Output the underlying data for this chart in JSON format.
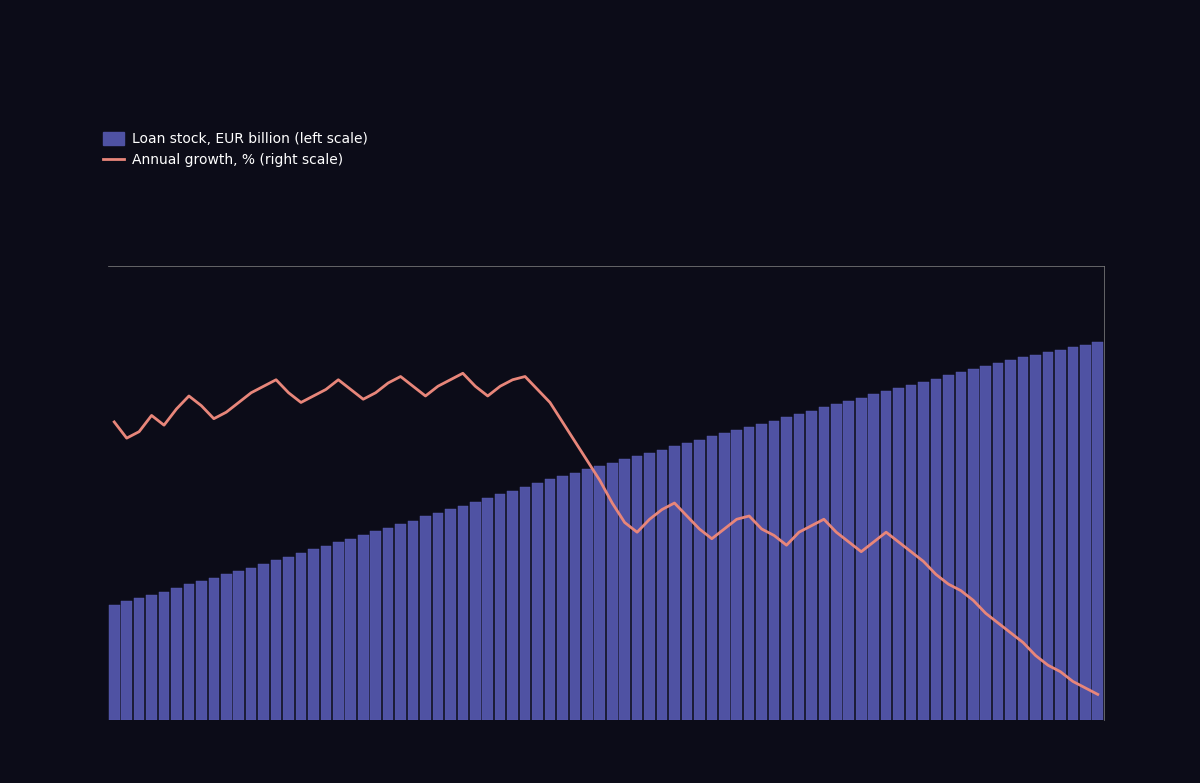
{
  "background_color": "#0c0c18",
  "bar_color": "#4f52a3",
  "line_color": "#e8867a",
  "bar_edge_color": "#5c5eb5",
  "legend_bar_label": "Loan stock, EUR billion (left scale)",
  "legend_line_label": "Annual growth, % (right scale)",
  "n_points": 80,
  "bar_values": [
    14.0,
    14.4,
    14.8,
    15.2,
    15.6,
    16.0,
    16.5,
    16.9,
    17.3,
    17.7,
    18.1,
    18.5,
    18.9,
    19.4,
    19.8,
    20.3,
    20.7,
    21.1,
    21.6,
    22.0,
    22.4,
    22.9,
    23.3,
    23.8,
    24.2,
    24.7,
    25.1,
    25.6,
    26.0,
    26.5,
    26.9,
    27.4,
    27.8,
    28.3,
    28.7,
    29.2,
    29.6,
    30.0,
    30.4,
    30.8,
    31.2,
    31.6,
    32.0,
    32.4,
    32.8,
    33.2,
    33.6,
    34.0,
    34.4,
    34.8,
    35.2,
    35.5,
    35.9,
    36.3,
    36.7,
    37.1,
    37.5,
    37.9,
    38.3,
    38.7,
    39.1,
    39.5,
    39.9,
    40.2,
    40.6,
    41.0,
    41.4,
    41.8,
    42.2,
    42.5,
    42.9,
    43.3,
    43.7,
    44.0,
    44.3,
    44.6,
    44.9,
    45.2,
    45.5,
    45.8
  ],
  "line_values": [
    9.2,
    8.7,
    8.9,
    9.4,
    9.1,
    9.6,
    10.0,
    9.7,
    9.3,
    9.5,
    9.8,
    10.1,
    10.3,
    10.5,
    10.1,
    9.8,
    10.0,
    10.2,
    10.5,
    10.2,
    9.9,
    10.1,
    10.4,
    10.6,
    10.3,
    10.0,
    10.3,
    10.5,
    10.7,
    10.3,
    10.0,
    10.3,
    10.5,
    10.6,
    10.2,
    9.8,
    9.2,
    8.6,
    8.0,
    7.4,
    6.7,
    6.1,
    5.8,
    6.2,
    6.5,
    6.7,
    6.3,
    5.9,
    5.6,
    5.9,
    6.2,
    6.3,
    5.9,
    5.7,
    5.4,
    5.8,
    6.0,
    6.2,
    5.8,
    5.5,
    5.2,
    5.5,
    5.8,
    5.5,
    5.2,
    4.9,
    4.5,
    4.2,
    4.0,
    3.7,
    3.3,
    3.0,
    2.7,
    2.4,
    2.0,
    1.7,
    1.5,
    1.2,
    1.0,
    0.8
  ],
  "xlim": [
    -0.5,
    79.5
  ],
  "bar_ylim": [
    0,
    55
  ],
  "line_ylim": [
    0,
    14
  ],
  "figsize": [
    12.0,
    7.83
  ]
}
